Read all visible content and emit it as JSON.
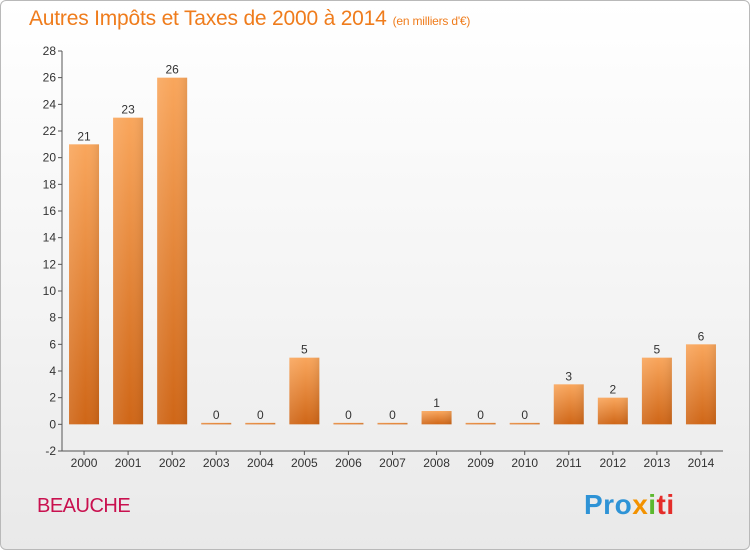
{
  "header": {
    "title": "Autres Impôts et Taxes de 2000 à 2014",
    "subtitle": "(en milliers d'€)"
  },
  "footer": {
    "place": "BEAUCHE",
    "logo": [
      "Pro",
      "x",
      "i",
      "ti"
    ]
  },
  "colors": {
    "title": "#ef7c1c",
    "bar_top": "#f9a65c",
    "bar_bottom": "#cf6617",
    "place": "#c9114f"
  },
  "chart_data": {
    "type": "bar",
    "categories": [
      "2000",
      "2001",
      "2002",
      "2003",
      "2004",
      "2005",
      "2006",
      "2007",
      "2008",
      "2009",
      "2010",
      "2011",
      "2012",
      "2013",
      "2014"
    ],
    "values": [
      21,
      23,
      26,
      0,
      0,
      5,
      0,
      0,
      1,
      0,
      0,
      3,
      2,
      5,
      6
    ],
    "title": "Autres Impôts et Taxes de 2000 à 2014",
    "subtitle": "(en milliers d'€)",
    "xlabel": "",
    "ylabel": "",
    "ylim": [
      -2,
      28
    ],
    "yticks": [
      -2,
      0,
      2,
      4,
      6,
      8,
      10,
      12,
      14,
      16,
      18,
      20,
      22,
      24,
      26,
      28
    ],
    "grid": false,
    "legend": "none"
  }
}
